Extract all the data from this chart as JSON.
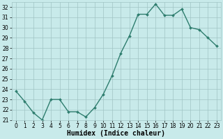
{
  "x": [
    0,
    1,
    2,
    3,
    4,
    5,
    6,
    7,
    8,
    9,
    10,
    11,
    12,
    13,
    14,
    15,
    16,
    17,
    18,
    19,
    20,
    21,
    22,
    23
  ],
  "y": [
    23.8,
    22.8,
    21.7,
    21.0,
    23.0,
    23.0,
    21.8,
    21.8,
    21.3,
    22.2,
    23.5,
    25.3,
    27.5,
    29.2,
    31.3,
    31.3,
    32.3,
    31.2,
    31.2,
    31.8,
    30.0,
    29.8,
    29.0,
    28.2
  ],
  "line_color": "#2e7d6e",
  "marker": "D",
  "marker_size": 2,
  "bg_color": "#c8eaea",
  "grid_color": "#a0c4c4",
  "xlabel": "Humidex (Indice chaleur)",
  "xlim": [
    -0.5,
    23.5
  ],
  "ylim": [
    21,
    32.5
  ],
  "yticks": [
    21,
    22,
    23,
    24,
    25,
    26,
    27,
    28,
    29,
    30,
    31,
    32
  ],
  "xticks": [
    0,
    1,
    2,
    3,
    4,
    5,
    6,
    7,
    8,
    9,
    10,
    11,
    12,
    13,
    14,
    15,
    16,
    17,
    18,
    19,
    20,
    21,
    22,
    23
  ],
  "tick_fontsize": 5.5,
  "label_fontsize": 7,
  "line_width": 1.0
}
